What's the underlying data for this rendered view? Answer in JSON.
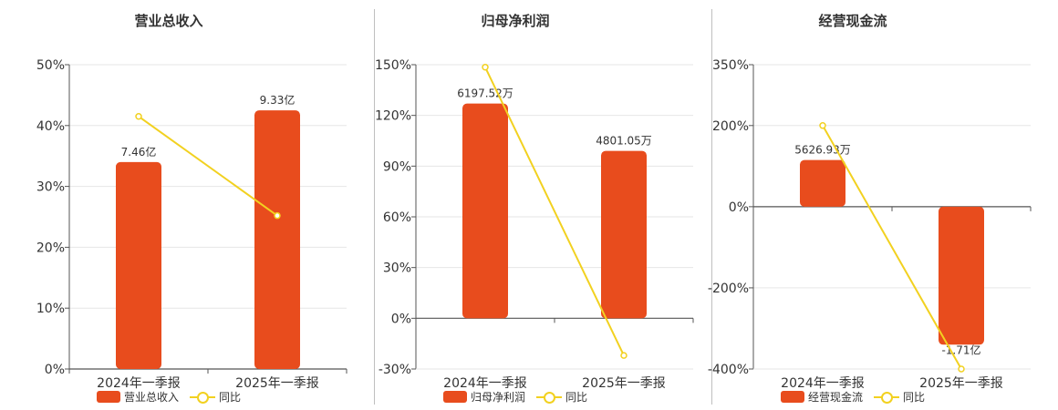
{
  "colors": {
    "bar": "#e84c1d",
    "line": "#f2d120",
    "axis": "#555555",
    "grid": "#e6e6e6",
    "text": "#333333"
  },
  "legend": {
    "line_label": "同比"
  },
  "chart_data": [
    {
      "type": "bar",
      "title": "营业总收入",
      "categories": [
        "2024年一季报",
        "2025年一季报"
      ],
      "series": [
        {
          "name": "营业总收入",
          "type": "bar",
          "values": [
            34,
            42.5
          ],
          "data_labels": [
            "7.46亿",
            "9.33亿"
          ]
        },
        {
          "name": "同比",
          "type": "line",
          "values": [
            41.5,
            25.2
          ]
        }
      ],
      "ylim": [
        0,
        50
      ],
      "yticks": [
        0,
        10,
        20,
        30,
        40,
        50
      ],
      "ytick_labels": [
        "0%",
        "10%",
        "20%",
        "30%",
        "40%",
        "50%"
      ]
    },
    {
      "type": "bar",
      "title": "归母净利润",
      "categories": [
        "2024年一季报",
        "2025年一季报"
      ],
      "series": [
        {
          "name": "归母净利润",
          "type": "bar",
          "values": [
            127,
            99
          ],
          "data_labels": [
            "6197.52万",
            "4801.05万"
          ]
        },
        {
          "name": "同比",
          "type": "line",
          "values": [
            148.5,
            -22
          ]
        }
      ],
      "ylim": [
        -30,
        150
      ],
      "yticks": [
        -30,
        0,
        30,
        60,
        90,
        120,
        150
      ],
      "ytick_labels": [
        "-30%",
        "0%",
        "30%",
        "60%",
        "90%",
        "120%",
        "150%"
      ]
    },
    {
      "type": "bar",
      "title": "经营现金流",
      "categories": [
        "2024年一季报",
        "2025年一季报"
      ],
      "series": [
        {
          "name": "经营现金流",
          "type": "bar",
          "values": [
            115,
            -340
          ],
          "data_labels": [
            "5626.93万",
            "-1.71亿"
          ]
        },
        {
          "name": "同比",
          "type": "line",
          "values": [
            200,
            -400
          ]
        }
      ],
      "ylim": [
        -400,
        350
      ],
      "yticks": [
        -400,
        -200,
        0,
        200,
        350
      ],
      "ytick_labels": [
        "-400%",
        "-200%",
        "0%",
        "200%",
        "350%"
      ]
    }
  ]
}
